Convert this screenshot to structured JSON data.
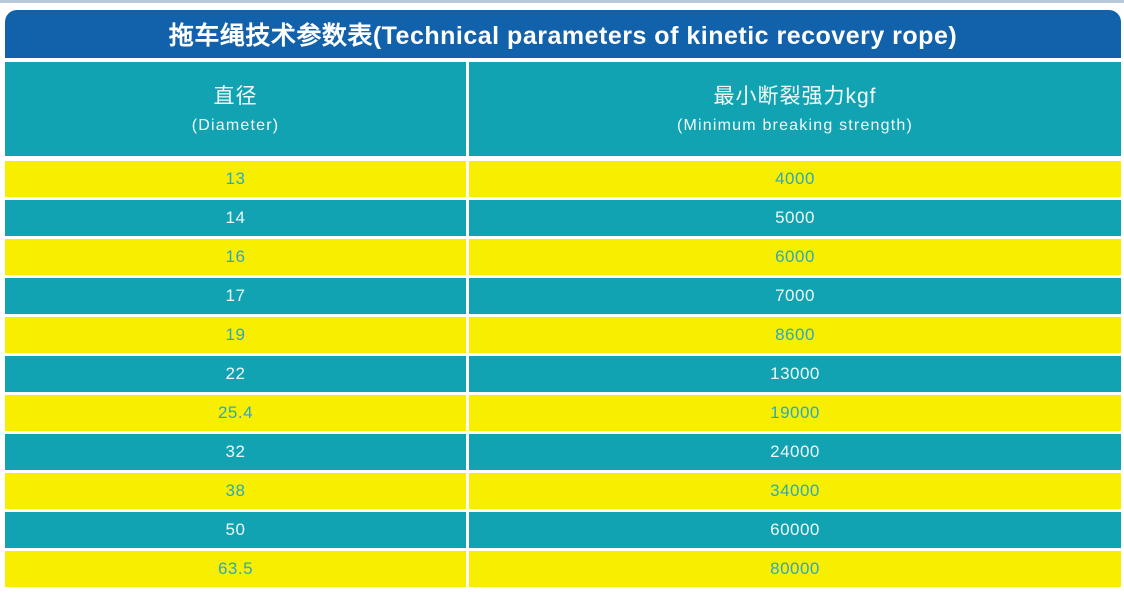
{
  "title": "拖车绳技术参数表(Technical parameters of kinetic recovery rope)",
  "table": {
    "headers": [
      {
        "cn": "直径",
        "en": "(Diameter)"
      },
      {
        "cn": "最小断裂强力kgf",
        "en": "(Minimum breaking strength)"
      }
    ],
    "rows": [
      {
        "diameter": "13",
        "strength": "4000"
      },
      {
        "diameter": "14",
        "strength": "5000"
      },
      {
        "diameter": "16",
        "strength": "6000"
      },
      {
        "diameter": "17",
        "strength": "7000"
      },
      {
        "diameter": "19",
        "strength": "8600"
      },
      {
        "diameter": "22",
        "strength": "13000"
      },
      {
        "diameter": "25.4",
        "strength": "19000"
      },
      {
        "diameter": "32",
        "strength": "24000"
      },
      {
        "diameter": "38",
        "strength": "34000"
      },
      {
        "diameter": "50",
        "strength": "60000"
      },
      {
        "diameter": "63.5",
        "strength": "80000"
      }
    ]
  },
  "colors": {
    "top_line": "#b9c9dc",
    "title_bar": "#1161ab",
    "title_text": "#ffffff",
    "teal_row": "#11a3b2",
    "yellow_row": "#f8ee00",
    "text_on_yellow": "#2ba9c2",
    "text_on_teal": "#eef8f9"
  }
}
